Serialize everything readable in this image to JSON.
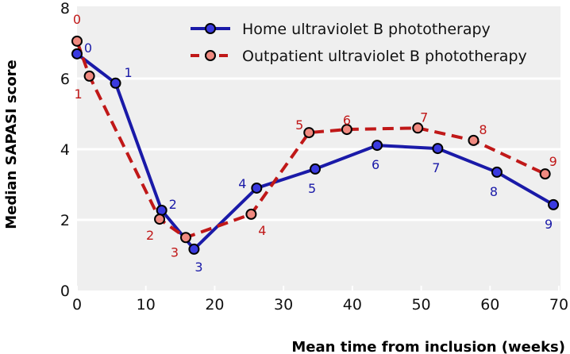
{
  "chart_data": {
    "type": "line",
    "title": "",
    "xlabel": "Mean time from inclusion (weeks)",
    "ylabel": "Median SAPASI score",
    "xlim": [
      0,
      70
    ],
    "ylim": [
      0,
      8
    ],
    "xticks": [
      0,
      10,
      20,
      30,
      40,
      50,
      60,
      70
    ],
    "yticks": [
      0,
      2,
      4,
      6,
      8
    ],
    "grid": "horizontal",
    "legend_position": "top-right",
    "series": [
      {
        "name": "Home ultraviolet B phototherapy",
        "color": "#1a1aa8",
        "line_style": "solid",
        "labels": [
          "0",
          "1",
          "2",
          "3",
          "4",
          "5",
          "6",
          "7",
          "8",
          "9"
        ],
        "x": [
          0,
          5.6,
          12.3,
          17.0,
          26.1,
          34.6,
          43.6,
          52.4,
          61.0,
          69.2
        ],
        "y": [
          6.7,
          5.87,
          2.27,
          1.17,
          2.9,
          3.44,
          4.11,
          4.02,
          3.35,
          2.43
        ]
      },
      {
        "name": "Outpatient ultraviolet B phototherapy",
        "color": "#c01818",
        "line_style": "dashed",
        "labels": [
          "0",
          "1",
          "2",
          "3",
          "4",
          "5",
          "6",
          "7",
          "8",
          "9"
        ],
        "x": [
          0,
          1.8,
          12.0,
          15.8,
          25.3,
          33.7,
          39.2,
          49.5,
          57.6,
          68.0
        ],
        "y": [
          7.06,
          6.07,
          2.02,
          1.5,
          2.16,
          4.47,
          4.56,
          4.6,
          4.25,
          3.3
        ]
      }
    ]
  }
}
